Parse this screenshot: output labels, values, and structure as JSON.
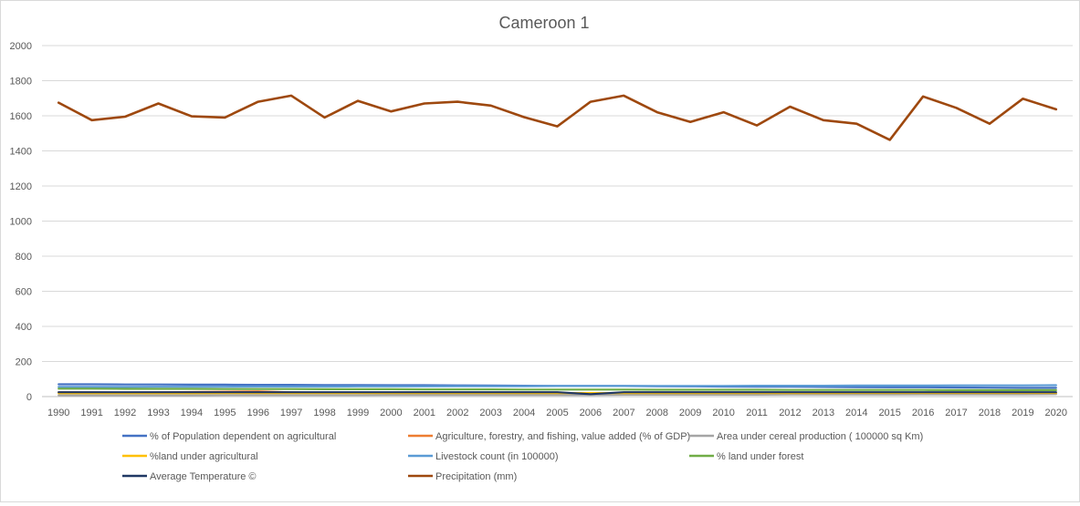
{
  "chart_data": {
    "type": "line",
    "title": "Cameroon 1",
    "xlabel": "",
    "ylabel": "",
    "ylim": [
      0,
      2000
    ],
    "yticks": [
      0,
      200,
      400,
      600,
      800,
      1000,
      1200,
      1400,
      1600,
      1800,
      2000
    ],
    "grid": true,
    "legend_position": "bottom",
    "x": [
      "1990",
      "1991",
      "1992",
      "1993",
      "1994",
      "1995",
      "1996",
      "1997",
      "1998",
      "1999",
      "2000",
      "2001",
      "2002",
      "2003",
      "2004",
      "2005",
      "2006",
      "2007",
      "2008",
      "2009",
      "2010",
      "2011",
      "2012",
      "2013",
      "2014",
      "2015",
      "2016",
      "2017",
      "2018",
      "2019",
      "2020"
    ],
    "series": [
      {
        "name": "% of Population dependent on agricultural",
        "color": "#4472c4",
        "values": [
          70,
          70,
          69,
          69,
          68,
          68,
          67,
          67,
          66,
          66,
          65,
          65,
          64,
          63,
          62,
          61,
          61,
          60,
          59,
          58,
          57,
          56,
          56,
          55,
          54,
          53,
          53,
          52,
          51,
          50,
          50
        ]
      },
      {
        "name": "Agriculture, forestry, and fishing, value added (% of GDP)",
        "color": "#ed7d31",
        "values": [
          25,
          24,
          23,
          24,
          26,
          28,
          30,
          24,
          22,
          22,
          21,
          21,
          21,
          20,
          20,
          19,
          18,
          18,
          18,
          17,
          18,
          17,
          17,
          16,
          16,
          16,
          16,
          16,
          16,
          17,
          17
        ]
      },
      {
        "name": "Area under cereal production ( 100000 sq Km)",
        "color": "#a5a5a5",
        "values": [
          8,
          8,
          8,
          8,
          8,
          9,
          9,
          9,
          9,
          9,
          10,
          10,
          10,
          10,
          10,
          10,
          10,
          11,
          11,
          11,
          11,
          11,
          12,
          12,
          12,
          12,
          13,
          13,
          13,
          13,
          14
        ]
      },
      {
        "name": "%land under agricultural",
        "color": "#ffc000",
        "values": [
          19,
          19,
          19,
          19,
          19,
          20,
          20,
          20,
          20,
          20,
          20,
          20,
          20,
          20,
          20,
          20,
          20,
          20,
          20,
          20,
          20,
          20,
          20,
          20,
          21,
          21,
          21,
          21,
          21,
          21,
          21
        ]
      },
      {
        "name": "Livestock count (in 100000)",
        "color": "#5b9bd5",
        "values": [
          55,
          55,
          55,
          56,
          56,
          56,
          57,
          57,
          57,
          58,
          58,
          58,
          59,
          59,
          59,
          60,
          60,
          60,
          61,
          61,
          61,
          62,
          62,
          62,
          63,
          63,
          63,
          64,
          64,
          64,
          65
        ]
      },
      {
        "name": "% land under forest",
        "color": "#70ad47",
        "values": [
          45,
          45,
          44,
          44,
          44,
          43,
          43,
          43,
          42,
          42,
          42,
          41,
          41,
          41,
          40,
          40,
          40,
          40,
          39,
          39,
          39,
          39,
          38,
          38,
          38,
          38,
          38,
          37,
          37,
          37,
          37
        ]
      },
      {
        "name": "Average Temperature ©",
        "color": "#203864",
        "values": [
          25,
          25,
          25,
          25,
          25,
          25,
          25,
          25,
          25,
          25,
          25,
          25,
          25,
          25,
          25,
          25,
          14,
          25,
          25,
          25,
          25,
          25,
          25,
          25,
          25,
          25,
          25,
          25,
          25,
          25,
          25
        ]
      },
      {
        "name": "Precipitation (mm)",
        "color": "#9e480e",
        "values": [
          1675,
          1575,
          1595,
          1670,
          1597,
          1590,
          1680,
          1715,
          1590,
          1685,
          1625,
          1670,
          1680,
          1658,
          1592,
          1540,
          1680,
          1715,
          1620,
          1565,
          1620,
          1545,
          1652,
          1575,
          1555,
          1463,
          1710,
          1645,
          1555,
          1697,
          1637
        ]
      }
    ]
  }
}
